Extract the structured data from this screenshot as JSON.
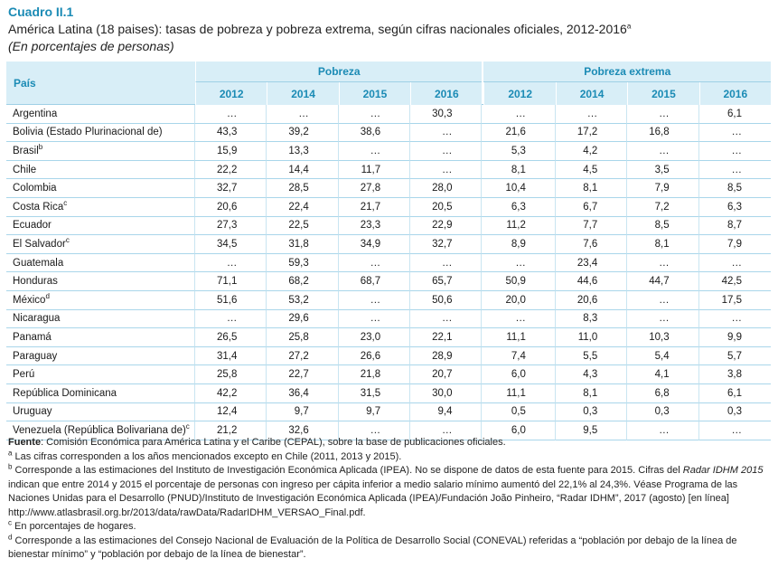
{
  "label": "Cuadro II.1",
  "title": "América Latina (18 paises): tasas de pobreza y pobreza extrema, según cifras nacionales oficiales, 2012-2016",
  "title_sup": "a",
  "subtitle": "(En porcentajes de personas)",
  "table": {
    "col_country": "País",
    "group_pobreza": "Pobreza",
    "group_extrema": "Pobreza extrema",
    "years": [
      "2012",
      "2014",
      "2015",
      "2016"
    ],
    "rows": [
      {
        "country": "Argentina",
        "sup": "",
        "pov": [
          "…",
          "…",
          "…",
          "30,3"
        ],
        "ext": [
          "…",
          "…",
          "…",
          "6,1"
        ]
      },
      {
        "country": "Bolivia (Estado Plurinacional de)",
        "sup": "",
        "pov": [
          "43,3",
          "39,2",
          "38,6",
          "…"
        ],
        "ext": [
          "21,6",
          "17,2",
          "16,8",
          "…"
        ]
      },
      {
        "country": "Brasil",
        "sup": "b",
        "pov": [
          "15,9",
          "13,3",
          "…",
          "…"
        ],
        "ext": [
          "5,3",
          "4,2",
          "…",
          "…"
        ]
      },
      {
        "country": "Chile",
        "sup": "",
        "pov": [
          "22,2",
          "14,4",
          "11,7",
          "…"
        ],
        "ext": [
          "8,1",
          "4,5",
          "3,5",
          "…"
        ]
      },
      {
        "country": "Colombia",
        "sup": "",
        "pov": [
          "32,7",
          "28,5",
          "27,8",
          "28,0"
        ],
        "ext": [
          "10,4",
          "8,1",
          "7,9",
          "8,5"
        ]
      },
      {
        "country": "Costa Rica",
        "sup": "c",
        "pov": [
          "20,6",
          "22,4",
          "21,7",
          "20,5"
        ],
        "ext": [
          "6,3",
          "6,7",
          "7,2",
          "6,3"
        ]
      },
      {
        "country": "Ecuador",
        "sup": "",
        "pov": [
          "27,3",
          "22,5",
          "23,3",
          "22,9"
        ],
        "ext": [
          "11,2",
          "7,7",
          "8,5",
          "8,7"
        ]
      },
      {
        "country": "El Salvador",
        "sup": "c",
        "pov": [
          "34,5",
          "31,8",
          "34,9",
          "32,7"
        ],
        "ext": [
          "8,9",
          "7,6",
          "8,1",
          "7,9"
        ]
      },
      {
        "country": "Guatemala",
        "sup": "",
        "pov": [
          "…",
          "59,3",
          "…",
          "…"
        ],
        "ext": [
          "…",
          "23,4",
          "…",
          "…"
        ]
      },
      {
        "country": "Honduras",
        "sup": "",
        "pov": [
          "71,1",
          "68,2",
          "68,7",
          "65,7"
        ],
        "ext": [
          "50,9",
          "44,6",
          "44,7",
          "42,5"
        ]
      },
      {
        "country": "México",
        "sup": "d",
        "pov": [
          "51,6",
          "53,2",
          "…",
          "50,6"
        ],
        "ext": [
          "20,0",
          "20,6",
          "…",
          "17,5"
        ]
      },
      {
        "country": "Nicaragua",
        "sup": "",
        "pov": [
          "…",
          "29,6",
          "…",
          "…"
        ],
        "ext": [
          "…",
          "8,3",
          "…",
          "…"
        ]
      },
      {
        "country": "Panamá",
        "sup": "",
        "pov": [
          "26,5",
          "25,8",
          "23,0",
          "22,1"
        ],
        "ext": [
          "11,1",
          "11,0",
          "10,3",
          "9,9"
        ]
      },
      {
        "country": "Paraguay",
        "sup": "",
        "pov": [
          "31,4",
          "27,2",
          "26,6",
          "28,9"
        ],
        "ext": [
          "7,4",
          "5,5",
          "5,4",
          "5,7"
        ]
      },
      {
        "country": "Perú",
        "sup": "",
        "pov": [
          "25,8",
          "22,7",
          "21,8",
          "20,7"
        ],
        "ext": [
          "6,0",
          "4,3",
          "4,1",
          "3,8"
        ]
      },
      {
        "country": "República Dominicana",
        "sup": "",
        "pov": [
          "42,2",
          "36,4",
          "31,5",
          "30,0"
        ],
        "ext": [
          "11,1",
          "8,1",
          "6,8",
          "6,1"
        ]
      },
      {
        "country": "Uruguay",
        "sup": "",
        "pov": [
          "12,4",
          "9,7",
          "9,7",
          "9,4"
        ],
        "ext": [
          "0,5",
          "0,3",
          "0,3",
          "0,3"
        ]
      },
      {
        "country": "Venezuela (República Bolivariana de)",
        "sup": "c",
        "pov": [
          "21,2",
          "32,6",
          "…",
          "…"
        ],
        "ext": [
          "6,0",
          "9,5",
          "…",
          "…"
        ]
      }
    ]
  },
  "notes": {
    "source_label": "Fuente",
    "source_text": ": Comisión Económica para América Latina y el Caribe (CEPAL), sobre la base de publicaciones oficiales.",
    "a_mark": "a",
    "a_text": " Las cifras corresponden a los años mencionados excepto en Chile (2011, 2013 y 2015).",
    "b_mark": "b",
    "b_text_1": " Corresponde a las estimaciones del Instituto de Investigación Económica Aplicada (IPEA). No se dispone de datos de esta fuente para 2015. Cifras del ",
    "b_italic": "Radar IDHM 2015",
    "b_text_2": " indican que entre 2014 y 2015 el porcentaje de personas con ingreso per cápita inferior a medio salario mínimo aumentó del 22,1% al 24,3%. Véase Programa de las Naciones Unidas para el Desarrollo (PNUD)/Instituto de Investigación Económica Aplicada (IPEA)/Fundación João Pinheiro, “Radar IDHM”, 2017 (agosto) [en línea] http://www.atlasbrasil.org.br/2013/data/rawData/RadarIDHM_VERSAO_Final.pdf.",
    "c_mark": "c",
    "c_text": " En porcentajes de hogares.",
    "d_mark": "d",
    "d_text": " Corresponde a las estimaciones del Consejo Nacional de Evaluación de la Política de Desarrollo Social (CONEVAL) referidas a “población por debajo de la línea de bienestar mínimo” y “población por debajo de la línea de bienestar”."
  }
}
